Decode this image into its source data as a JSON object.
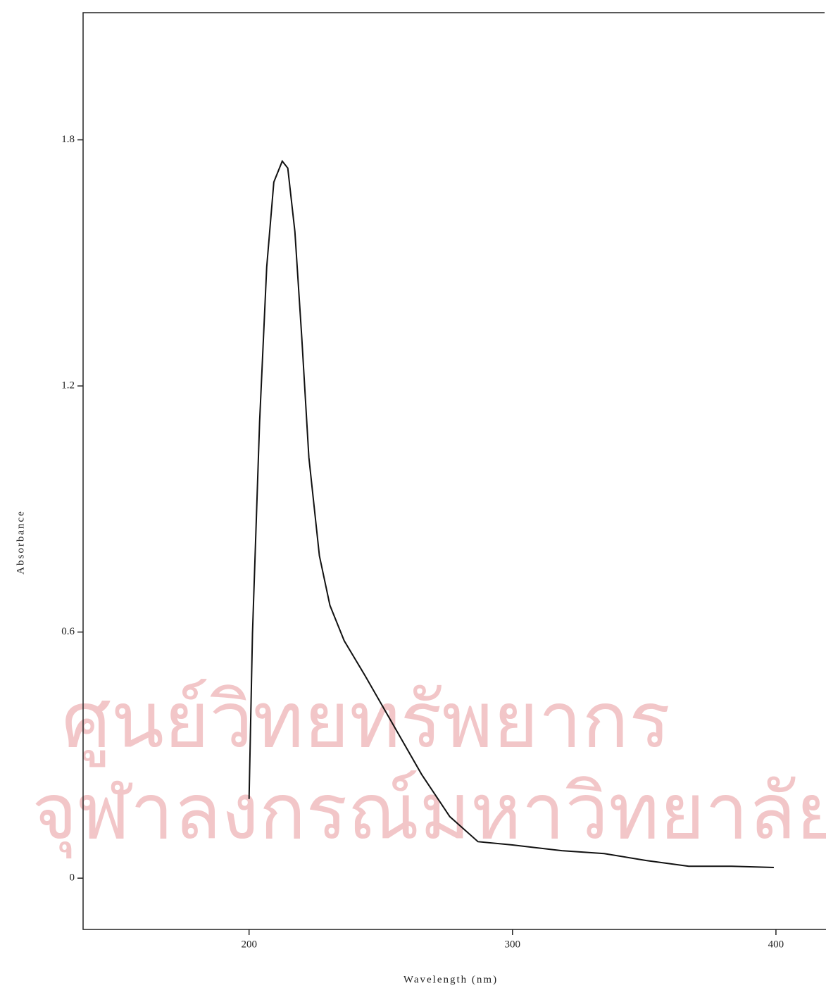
{
  "chart_data": {
    "type": "line",
    "x_label": "Wavelength (nm)",
    "y_label": "Absorbance",
    "watermark": [
      "ศูนย์วิทยทรัพยากร",
      "จุฬาลงกรณ์มหาวิทยาลัย"
    ],
    "x": [
      200,
      201.3,
      204,
      206.7,
      209.4,
      212.6,
      214.7,
      217.4,
      220,
      222.7,
      226.7,
      230.7,
      236.1,
      244.1,
      254.8,
      265.5,
      276.2,
      286.9,
      300,
      318.7,
      334.8,
      350.8,
      366.9,
      383.2,
      399.2
    ],
    "series": [
      {
        "color": "#111111",
        "values": [
          0.193,
          0.597,
          1.112,
          1.49,
          1.697,
          1.748,
          1.731,
          1.576,
          1.319,
          1.026,
          0.786,
          0.665,
          0.579,
          0.493,
          0.373,
          0.253,
          0.15,
          0.089,
          0.081,
          0.067,
          0.06,
          0.043,
          0.029,
          0.029,
          0.026
        ]
      }
    ],
    "xlim": [
      137,
      419
    ],
    "ylim": [
      -0.125,
      2.11
    ],
    "xticks": [
      200,
      300,
      400
    ],
    "yticks": [
      0,
      0.6,
      1.2,
      1.8
    ],
    "grid": false
  }
}
